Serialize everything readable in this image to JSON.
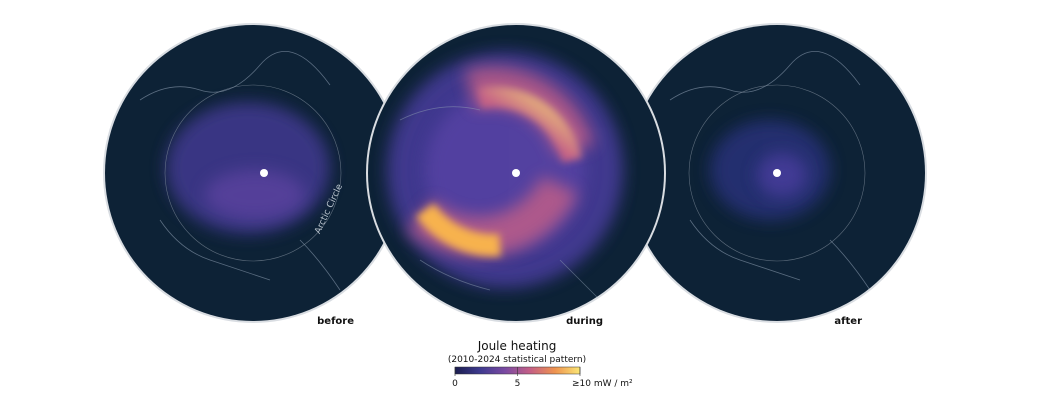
{
  "panels": [
    {
      "label": "before"
    },
    {
      "label": "during"
    },
    {
      "label": "after"
    }
  ],
  "annotation": "Arctic Circle",
  "colorbar": {
    "title": "Joule heating",
    "subtitle": "(2010-2024 statistical pattern)",
    "range": [
      0,
      10
    ],
    "ticks": [
      0,
      5,
      {
        "value": 10,
        "label": "≥10 mW / m²"
      }
    ],
    "colors": [
      "#1b1d4f",
      "#3e3a8f",
      "#7a4aa2",
      "#c45f86",
      "#ee9350",
      "#fbe775"
    ]
  }
}
